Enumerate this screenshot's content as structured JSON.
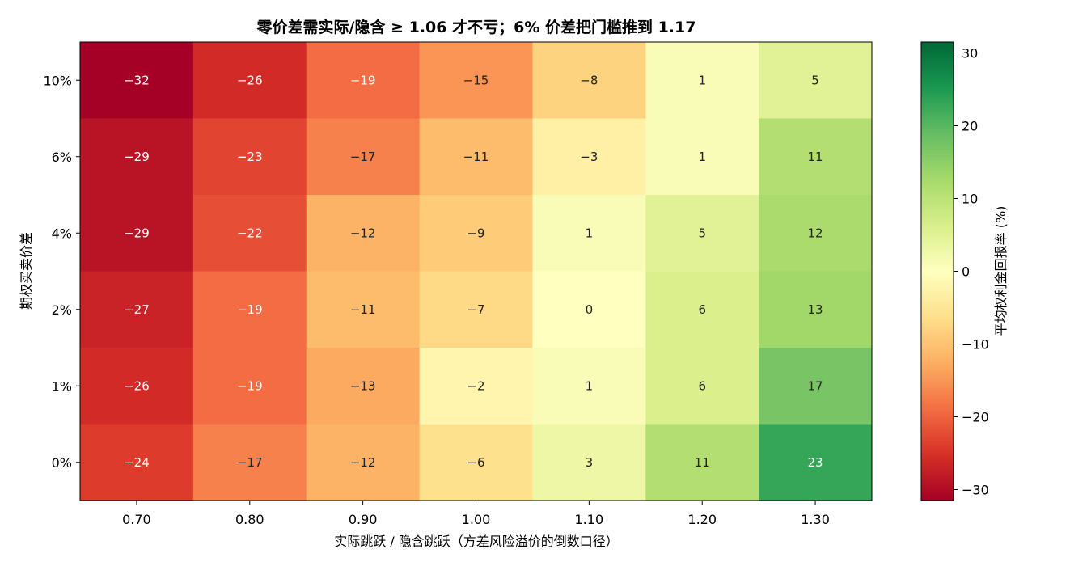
{
  "chart_data": {
    "type": "heatmap",
    "title": "零价差需实际/隐含 ≥ 1.06 才不亏；6% 价差把门槛推到 1.17",
    "xlabel": "实际跳跃 / 隐含跳跃（方差风险溢价的倒数口径）",
    "ylabel": "期权买卖价差",
    "x_categories": [
      "0.70",
      "0.80",
      "0.90",
      "1.00",
      "1.10",
      "1.20",
      "1.30"
    ],
    "y_categories": [
      "10%",
      "6%",
      "4%",
      "2%",
      "1%",
      "0%"
    ],
    "values": [
      [
        -32,
        -26,
        -19,
        -15,
        -8,
        1,
        5
      ],
      [
        -29,
        -23,
        -17,
        -11,
        -3,
        1,
        11
      ],
      [
        -29,
        -22,
        -12,
        -9,
        1,
        5,
        12
      ],
      [
        -27,
        -19,
        -11,
        -7,
        0,
        6,
        13
      ],
      [
        -26,
        -19,
        -13,
        -2,
        1,
        6,
        17
      ],
      [
        -24,
        -17,
        -12,
        -6,
        3,
        11,
        23
      ]
    ],
    "colorbar": {
      "label": "平均权利金回报率 (%)",
      "range": [
        -31.5,
        31.5
      ],
      "ticks": [
        -30,
        -20,
        -10,
        0,
        10,
        20,
        30
      ],
      "tick_labels": [
        "−30",
        "−20",
        "−10",
        "0",
        "10",
        "20",
        "30"
      ],
      "colormap": "RdYlGn"
    },
    "grid": false
  }
}
